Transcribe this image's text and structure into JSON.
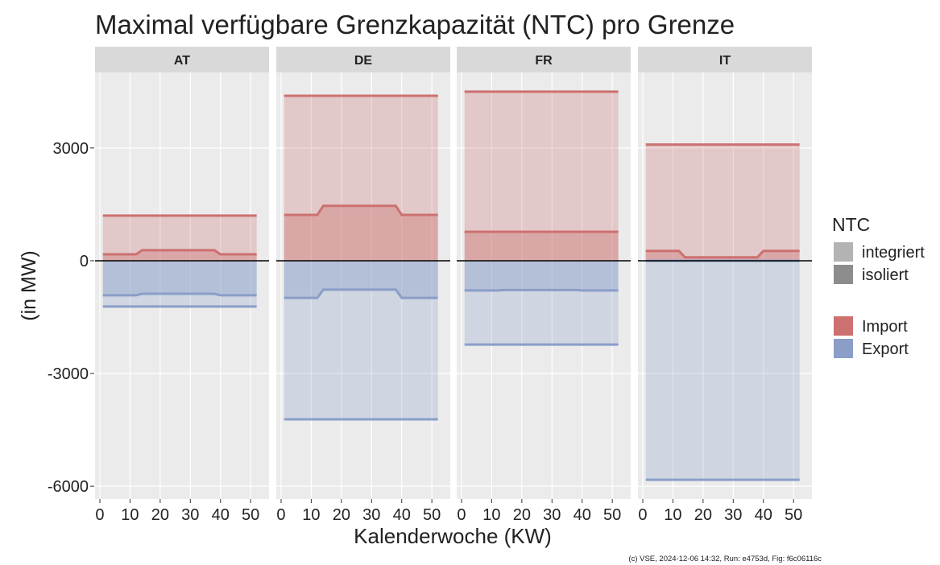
{
  "chart_data": {
    "type": "area",
    "title": "Maximal verfügbare Grenzkapazität (NTC) pro Grenze",
    "xlabel": "Kalenderwoche (KW)",
    "ylabel": "(in MW)",
    "caption": "(c) VSE, 2024-12-06 14:32, Run: e4753d, Fig: f6c06116c",
    "x": [
      1,
      12,
      14,
      38,
      40,
      52
    ],
    "xlim": [
      -1.6,
      56.1
    ],
    "xticks": [
      0,
      10,
      20,
      30,
      40,
      50
    ],
    "ylim": [
      -6340,
      5010
    ],
    "yticks": [
      -6000,
      -3000,
      0,
      3000
    ],
    "grid": true,
    "legend": {
      "title": "NTC",
      "ntc": [
        {
          "name": "integriert",
          "color": "#b3b3b3"
        },
        {
          "name": "isoliert",
          "color": "#8c8c8c"
        }
      ],
      "series": [
        {
          "name": "Import",
          "color": "#cd7070"
        },
        {
          "name": "Export",
          "color": "#8a9ec8"
        }
      ]
    },
    "facets": [
      {
        "name": "AT",
        "series": [
          {
            "flow": "Import",
            "ntc": "integriert",
            "values": [
              1200,
              1200,
              1200,
              1200,
              1200,
              1200
            ]
          },
          {
            "flow": "Import",
            "ntc": "isoliert",
            "values": [
              170,
              170,
              280,
              280,
              170,
              170
            ]
          },
          {
            "flow": "Export",
            "ntc": "integriert",
            "values": [
              -1220,
              -1220,
              -1220,
              -1220,
              -1220,
              -1220
            ]
          },
          {
            "flow": "Export",
            "ntc": "isoliert",
            "values": [
              -920,
              -920,
              -880,
              -880,
              -920,
              -920
            ]
          }
        ]
      },
      {
        "name": "DE",
        "series": [
          {
            "flow": "Import",
            "ntc": "integriert",
            "values": [
              4390,
              4390,
              4390,
              4390,
              4390,
              4390
            ]
          },
          {
            "flow": "Import",
            "ntc": "isoliert",
            "values": [
              1220,
              1220,
              1460,
              1460,
              1220,
              1220
            ]
          },
          {
            "flow": "Export",
            "ntc": "integriert",
            "values": [
              -4220,
              -4220,
              -4220,
              -4220,
              -4220,
              -4220
            ]
          },
          {
            "flow": "Export",
            "ntc": "isoliert",
            "values": [
              -990,
              -990,
              -770,
              -770,
              -990,
              -990
            ]
          }
        ]
      },
      {
        "name": "FR",
        "series": [
          {
            "flow": "Import",
            "ntc": "integriert",
            "values": [
              4500,
              4500,
              4500,
              4500,
              4500,
              4500
            ]
          },
          {
            "flow": "Import",
            "ntc": "isoliert",
            "values": [
              770,
              770,
              770,
              770,
              770,
              770
            ]
          },
          {
            "flow": "Export",
            "ntc": "integriert",
            "values": [
              -2230,
              -2230,
              -2230,
              -2230,
              -2230,
              -2230
            ]
          },
          {
            "flow": "Export",
            "ntc": "isoliert",
            "values": [
              -790,
              -790,
              -780,
              -780,
              -790,
              -790
            ]
          }
        ]
      },
      {
        "name": "IT",
        "series": [
          {
            "flow": "Import",
            "ntc": "integriert",
            "values": [
              3090,
              3090,
              3090,
              3090,
              3090,
              3090
            ]
          },
          {
            "flow": "Import",
            "ntc": "isoliert",
            "values": [
              260,
              260,
              90,
              90,
              260,
              260
            ]
          },
          {
            "flow": "Export",
            "ntc": "integriert",
            "values": [
              -5830,
              -5830,
              -5830,
              -5830,
              -5830,
              -5830
            ]
          },
          {
            "flow": "Export",
            "ntc": "isoliert",
            "values": [
              0,
              0,
              0,
              0,
              0,
              0
            ]
          }
        ]
      }
    ]
  }
}
